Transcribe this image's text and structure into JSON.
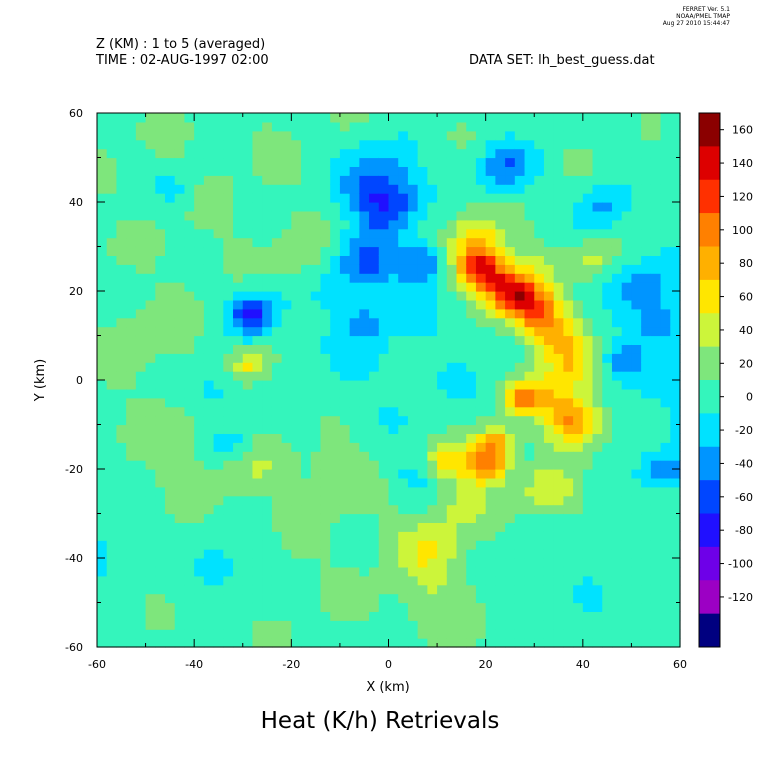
{
  "stamp": {
    "line1": "FERRET Ver. 5.1",
    "line2": "NOAA/PMEL TMAP",
    "line3": "Aug 27 2010 15:44:47"
  },
  "header": {
    "z_label": "Z (KM) : 1 to 5 (averaged)",
    "time_label": "TIME : 02-AUG-1997 02:00",
    "dataset_label": "DATA SET: lh_best_guess.dat"
  },
  "chart_data": {
    "type": "heatmap",
    "title": "Heat (K/h) Retrievals",
    "xlabel": "X (km)",
    "ylabel": "Y (km)",
    "xlim": [
      -60,
      60
    ],
    "ylim": [
      -60,
      60
    ],
    "x_ticks": [
      -60,
      -40,
      -20,
      0,
      20,
      40,
      60
    ],
    "y_ticks": [
      -60,
      -40,
      -20,
      0,
      20,
      40,
      60
    ],
    "colorbar": {
      "levels": [
        160,
        140,
        120,
        100,
        80,
        60,
        40,
        20,
        0,
        -20,
        -40,
        -60,
        -80,
        -100,
        -120
      ],
      "colors": [
        "#8b0000",
        "#dd0000",
        "#ff3000",
        "#ff8000",
        "#ffb000",
        "#ffe600",
        "#ccf53a",
        "#7ee67c",
        "#34f5bc",
        "#00e2ff",
        "#0095ff",
        "#0046ff",
        "#2010ff",
        "#6e00e8",
        "#9c00c4",
        "#000080"
      ]
    },
    "background_value": 5,
    "blobs": [
      {
        "x": -30,
        "y": 45,
        "r": 45,
        "amp": 14
      },
      {
        "x": -35,
        "y": -38,
        "r": 35,
        "amp": 10
      },
      {
        "x": 25,
        "y": -35,
        "r": 30,
        "amp": 10
      },
      {
        "x": 50,
        "y": 40,
        "r": 20,
        "amp": 8
      },
      {
        "x": 6,
        "y": 0,
        "r": 16,
        "amp": -14
      },
      {
        "x": -12,
        "y": 12,
        "r": 12,
        "amp": -12
      },
      {
        "x": 35,
        "y": -45,
        "r": 12,
        "amp": -10
      },
      {
        "x": 55,
        "y": 0,
        "r": 10,
        "amp": -12
      },
      {
        "x": -2,
        "y": 44,
        "r": 6,
        "amp": -65
      },
      {
        "x": 0,
        "y": 38,
        "r": 4,
        "amp": -40
      },
      {
        "x": 24,
        "y": 48,
        "r": 4,
        "amp": -55
      },
      {
        "x": -28,
        "y": 15,
        "r": 3.5,
        "amp": -75
      },
      {
        "x": -5,
        "y": 26,
        "r": 4.5,
        "amp": -55
      },
      {
        "x": 7,
        "y": 26,
        "r": 3.5,
        "amp": -55
      },
      {
        "x": 44,
        "y": 39,
        "r": 4,
        "amp": -40
      },
      {
        "x": 53,
        "y": 21,
        "r": 5,
        "amp": -40
      },
      {
        "x": 56,
        "y": 13,
        "r": 3,
        "amp": -40
      },
      {
        "x": 48,
        "y": 5,
        "r": 3,
        "amp": -40
      },
      {
        "x": -5,
        "y": 13,
        "r": 3,
        "amp": -35
      },
      {
        "x": 57,
        "y": -20,
        "r": 3,
        "amp": -45
      },
      {
        "x": -34,
        "y": -42,
        "r": 5,
        "amp": -30
      },
      {
        "x": -59,
        "y": -38,
        "r": 5,
        "amp": -25
      },
      {
        "x": -44,
        "y": 43,
        "r": 3,
        "amp": -25
      },
      {
        "x": -32,
        "y": -14,
        "r": 3,
        "amp": -30
      },
      {
        "x": -36,
        "y": -2,
        "r": 3,
        "amp": -30
      },
      {
        "x": 5,
        "y": -22,
        "r": 4,
        "amp": -20
      },
      {
        "x": 18,
        "y": 32,
        "r": 4,
        "amp": 50
      },
      {
        "x": 19,
        "y": 25,
        "r": 3.5,
        "amp": 130
      },
      {
        "x": 25,
        "y": 20,
        "r": 3.5,
        "amp": 120
      },
      {
        "x": 30,
        "y": 16,
        "r": 3.5,
        "amp": 95
      },
      {
        "x": 34,
        "y": 10,
        "r": 4,
        "amp": 70
      },
      {
        "x": 38,
        "y": 3,
        "r": 4,
        "amp": 55
      },
      {
        "x": 38,
        "y": -9,
        "r": 4,
        "amp": 95
      },
      {
        "x": 32,
        "y": -3,
        "r": 3.5,
        "amp": 50
      },
      {
        "x": 27,
        "y": -4,
        "r": 2.5,
        "amp": 80
      },
      {
        "x": 22,
        "y": -14,
        "r": 3,
        "amp": 75
      },
      {
        "x": 20,
        "y": -19,
        "r": 3,
        "amp": 90
      },
      {
        "x": 12,
        "y": -18,
        "r": 3,
        "amp": 60
      },
      {
        "x": 33,
        "y": -25,
        "r": 4,
        "amp": 45
      },
      {
        "x": 8,
        "y": -38,
        "r": 5,
        "amp": 35
      },
      {
        "x": 15,
        "y": -28,
        "r": 4,
        "amp": 30
      },
      {
        "x": -28,
        "y": 4,
        "r": 2.5,
        "amp": 55
      },
      {
        "x": -18,
        "y": 28,
        "r": 4,
        "amp": 20
      },
      {
        "x": 30,
        "y": 25,
        "r": 4,
        "amp": 20
      },
      {
        "x": 42,
        "y": 27,
        "r": 3,
        "amp": 30
      },
      {
        "x": -10,
        "y": -20,
        "r": 5,
        "amp": 20
      },
      {
        "x": -28,
        "y": -20,
        "r": 4,
        "amp": 18
      },
      {
        "x": -45,
        "y": -15,
        "r": 5,
        "amp": 15
      },
      {
        "x": 10,
        "y": -50,
        "r": 6,
        "amp": 18
      },
      {
        "x": -52,
        "y": 8,
        "r": 5,
        "amp": 15
      }
    ]
  }
}
